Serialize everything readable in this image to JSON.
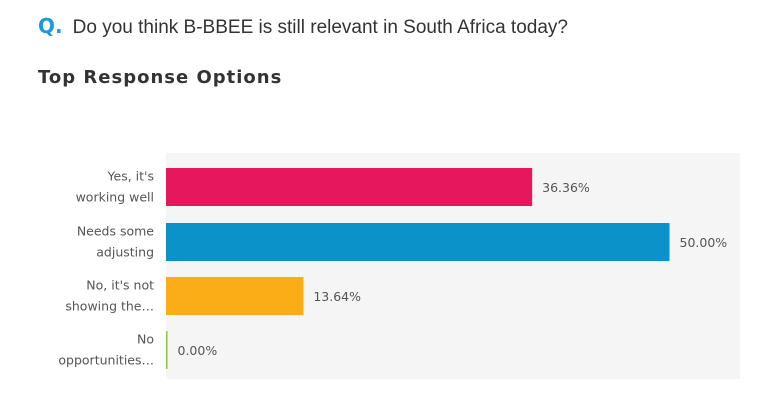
{
  "question": {
    "prefix": "Q.",
    "text": "Do you think B-BBEE is still relevant in South Africa today?"
  },
  "section_title": "Top Response Options",
  "chart_data": {
    "type": "bar",
    "orientation": "horizontal",
    "categories": [
      [
        "Yes, it's",
        "working well"
      ],
      [
        "Needs some",
        "adjusting"
      ],
      [
        "No, it's not",
        "showing the…"
      ],
      [
        "No",
        "opportunities…"
      ]
    ],
    "values": [
      36.36,
      50.0,
      13.64,
      0.0
    ],
    "value_labels": [
      "36.36%",
      "50.00%",
      "13.64%",
      "0.00%"
    ],
    "colors": [
      "#e6175c",
      "#0a92c9",
      "#fbad17",
      "#8cc63f"
    ],
    "plot_background": "#f5f5f5",
    "xlim": [
      0,
      57
    ],
    "grid": false,
    "legend": "none"
  }
}
